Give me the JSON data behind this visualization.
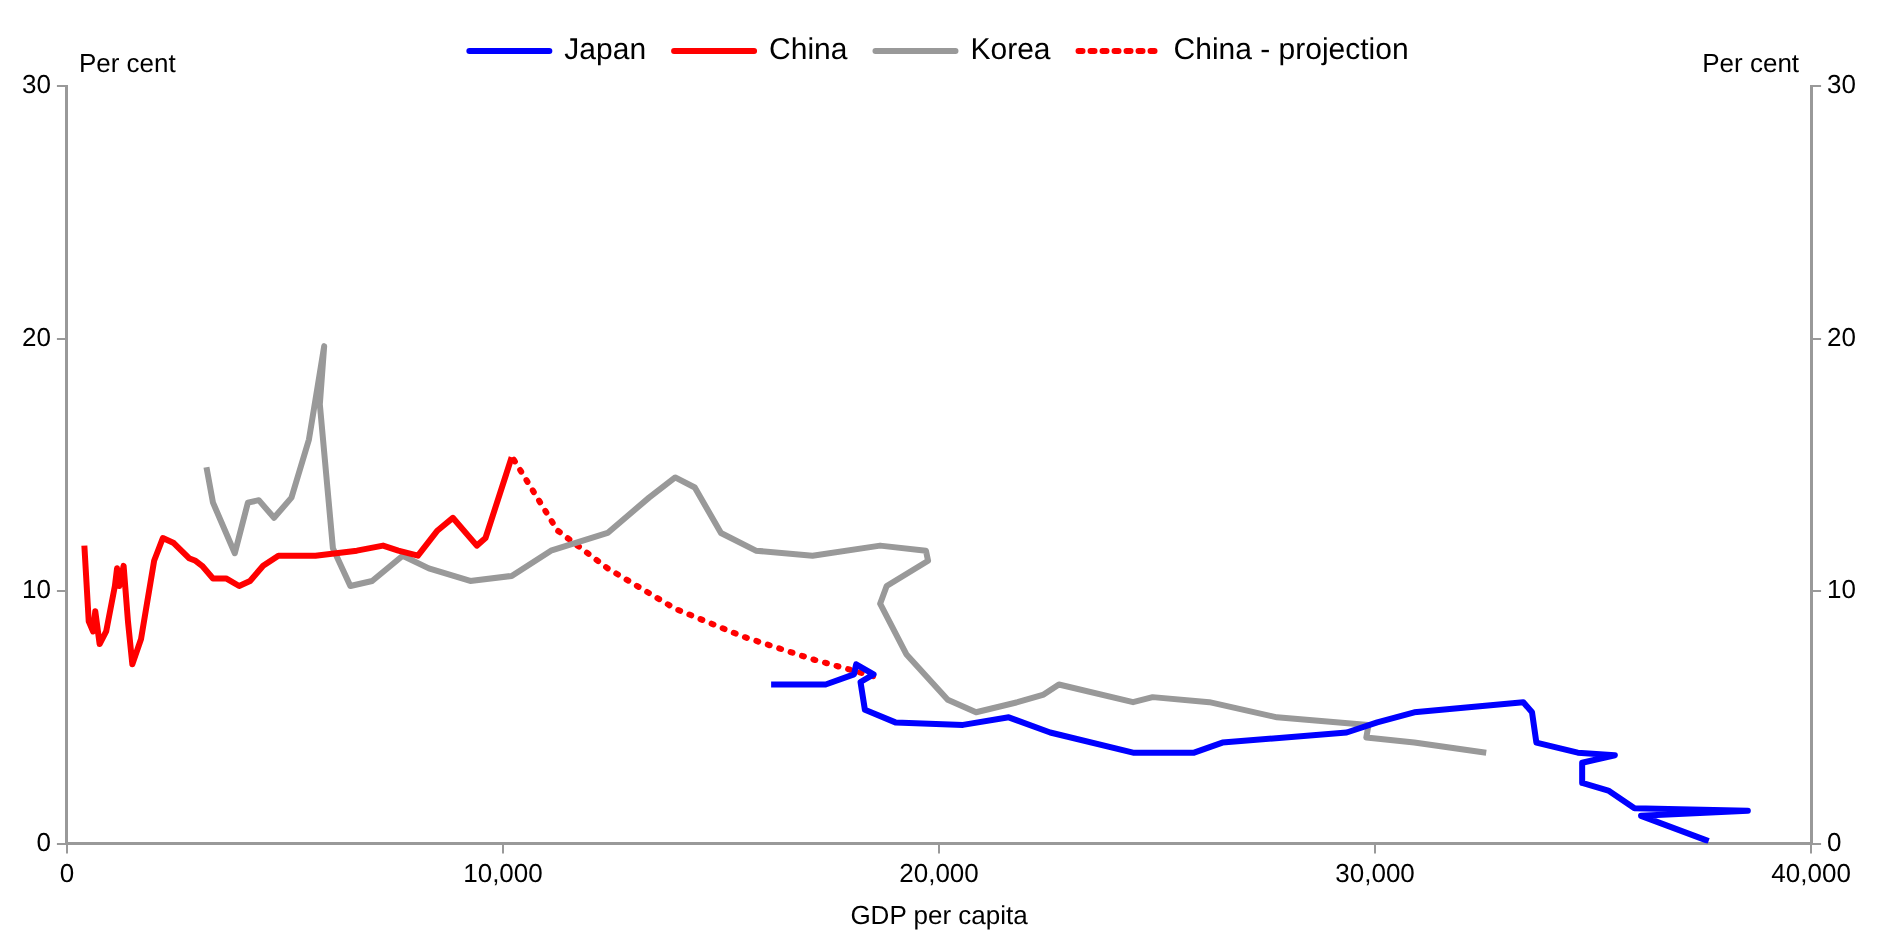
{
  "chart_data": {
    "type": "line",
    "xlabel": "GDP per capita",
    "ylabel": "Per cent",
    "y2label": "Per cent",
    "xlim": [
      0,
      40000
    ],
    "xticks": [
      0,
      {
        "value": 10000,
        "label": "10,000"
      },
      {
        "value": 20000,
        "label": "20,000"
      },
      {
        "value": 30000,
        "label": "30,000"
      },
      {
        "value": 40000,
        "label": "40,000"
      }
    ],
    "ylim": [
      0,
      30
    ],
    "yticks": [
      0,
      10,
      20,
      30
    ],
    "y2lim": [
      0,
      30
    ],
    "y2ticks": [
      0,
      10,
      20,
      30
    ],
    "grid": false,
    "legend": "top",
    "marker": "none",
    "series": [
      {
        "name": "Japan",
        "color": "#0000ff",
        "line_style": "solid",
        "x": [
          16150,
          17400,
          18050,
          18100,
          18500,
          18200,
          18300,
          19000,
          20550,
          21600,
          22550,
          24450,
          25850,
          26500,
          29350,
          30050,
          30900,
          33400,
          33600,
          33700,
          34650,
          35500,
          34750,
          34750,
          35350,
          35950,
          38550,
          36100,
          37650
        ],
        "values": [
          6.3,
          6.3,
          6.7,
          7.1,
          6.7,
          6.4,
          5.3,
          4.8,
          4.7,
          5.0,
          4.4,
          3.6,
          3.6,
          4.0,
          4.4,
          4.8,
          5.2,
          5.6,
          5.2,
          4.0,
          3.6,
          3.5,
          3.2,
          2.4,
          2.1,
          1.4,
          1.3,
          1.1,
          0.1
        ]
      },
      {
        "name": "China",
        "color": "#ff0000",
        "line_style": "solid",
        "x": [
          400,
          500,
          600,
          650,
          750,
          900,
          1100,
          1150,
          1200,
          1300,
          1400,
          1500,
          1700,
          2000,
          2200,
          2450,
          2800,
          2950,
          3100,
          3350,
          3650,
          3950,
          4200,
          4500,
          4850,
          5700,
          6650,
          7250,
          7600,
          8050,
          8500,
          8850,
          9400,
          9600,
          10200
        ],
        "values": [
          11.8,
          8.8,
          8.4,
          9.2,
          7.9,
          8.4,
          10.2,
          10.9,
          10.2,
          11.0,
          8.8,
          7.1,
          8.1,
          11.2,
          12.1,
          11.9,
          11.3,
          11.2,
          11.0,
          10.5,
          10.5,
          10.2,
          10.4,
          11.0,
          11.4,
          11.4,
          11.6,
          11.8,
          11.6,
          11.4,
          12.4,
          12.9,
          11.8,
          12.1,
          15.3
        ]
      },
      {
        "name": "Korea",
        "color": "#999999",
        "line_style": "solid",
        "x": [
          3200,
          3350,
          3850,
          4150,
          4400,
          4750,
          5150,
          5550,
          5750,
          5900,
          5800,
          6100,
          6500,
          7000,
          7700,
          8300,
          9250,
          10200,
          11100,
          12400,
          13350,
          13950,
          14400,
          15000,
          15800,
          17100,
          18650,
          19700,
          19750,
          18800,
          18650,
          19250,
          20200,
          20850,
          21800,
          22400,
          22750,
          24450,
          24900,
          26200,
          27750,
          29850,
          29800,
          30900,
          32550
        ],
        "values": [
          14.9,
          13.5,
          11.5,
          13.5,
          13.6,
          12.9,
          13.7,
          16.0,
          18.1,
          19.7,
          17.4,
          11.7,
          10.2,
          10.4,
          11.4,
          10.9,
          10.4,
          10.6,
          11.6,
          12.3,
          13.7,
          14.5,
          14.1,
          12.3,
          11.6,
          11.4,
          11.8,
          11.6,
          11.2,
          10.2,
          9.5,
          7.5,
          5.7,
          5.2,
          5.6,
          5.9,
          6.3,
          5.6,
          5.8,
          5.6,
          5.0,
          4.7,
          4.2,
          4.0,
          3.6
        ]
      },
      {
        "name": "China - projection",
        "color": "#ff0000",
        "line_style": "dotted",
        "x": [
          10250,
          11250,
          12400,
          13950,
          15500,
          17100,
          18550
        ],
        "values": [
          15.2,
          12.4,
          10.9,
          9.3,
          8.2,
          7.3,
          6.6
        ]
      }
    ]
  }
}
